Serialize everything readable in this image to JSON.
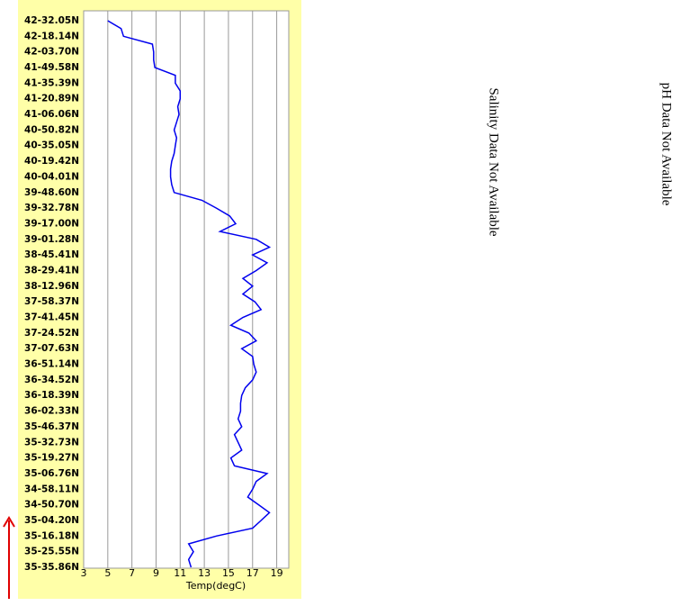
{
  "chart_data": {
    "type": "line",
    "categories": [
      "42-32.05N",
      null,
      "42-18.14N",
      null,
      "42-03.70N",
      null,
      "41-49.58N",
      null,
      "41-35.39N",
      null,
      "41-20.89N",
      null,
      "41-06.06N",
      null,
      "40-50.82N",
      null,
      "40-35.05N",
      null,
      "40-19.42N",
      null,
      "40-04.01N",
      null,
      "39-48.60N",
      null,
      "39-32.78N",
      null,
      "39-17.00N",
      null,
      "39-01.28N",
      null,
      "38-45.41N",
      null,
      "38-29.41N",
      null,
      "38-12.96N",
      null,
      "37-58.37N",
      null,
      "37-41.45N",
      null,
      "37-24.52N",
      null,
      "37-07.63N",
      null,
      "36-51.14N",
      null,
      "36-34.52N",
      null,
      "36-18.39N",
      null,
      "36-02.33N",
      null,
      "35-46.37N",
      null,
      "35-32.73N",
      null,
      "35-19.27N",
      null,
      "35-06.76N",
      null,
      "34-58.11N",
      null,
      "34-50.70N",
      null,
      "35-04.20N",
      null,
      "35-16.18N",
      null,
      "35-25.55N",
      null,
      "35-35.86N"
    ],
    "series": [
      {
        "color": "#0000ee",
        "values": [
          5.0,
          6.1,
          6.3,
          8.7,
          8.8,
          8.8,
          8.9,
          10.6,
          10.6,
          11.0,
          11.0,
          10.8,
          10.9,
          10.7,
          10.5,
          10.7,
          10.6,
          10.5,
          10.3,
          10.2,
          10.2,
          10.3,
          10.5,
          12.8,
          14.0,
          15.1,
          15.6,
          14.3,
          17.3,
          18.4,
          17.0,
          18.2,
          17.3,
          16.2,
          17.0,
          16.2,
          17.2,
          17.7,
          16.2,
          15.2,
          16.7,
          17.3,
          16.1,
          17.0,
          17.1,
          17.3,
          17.0,
          16.4,
          16.1,
          16.0,
          16.0,
          15.8,
          16.1,
          15.5,
          15.8,
          16.1,
          15.2,
          15.5,
          18.2,
          17.3,
          17.0,
          16.6,
          17.5,
          18.4,
          17.7,
          17.0,
          14.0,
          11.7,
          12.1,
          11.7,
          11.9
        ]
      }
    ],
    "xlabel": "Temp(degC)",
    "xlim": [
      3,
      20
    ],
    "xticks": [
      3,
      5,
      7,
      9,
      11,
      13,
      15,
      17,
      19
    ],
    "grid": true,
    "annotations": [
      "Salinity Data Not Available",
      "pH Data Not Available"
    ]
  }
}
